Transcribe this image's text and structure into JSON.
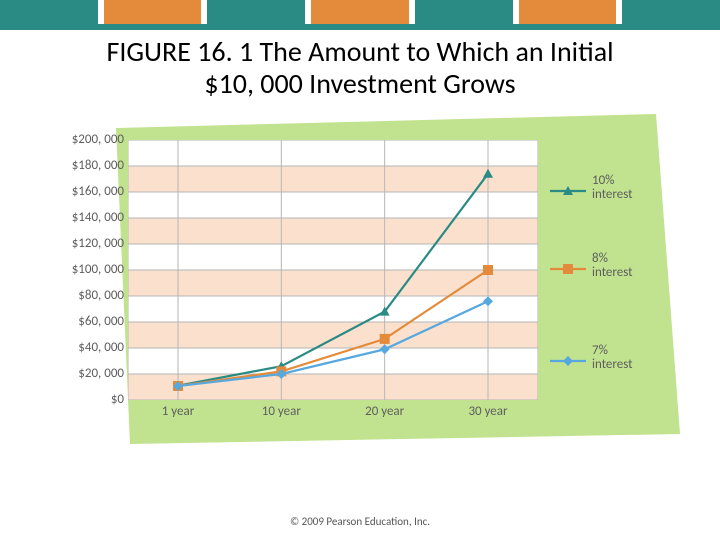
{
  "topStripes": {
    "gap_color": "#ffffff",
    "bottom_bar_color": "#2a8a84",
    "colors": [
      "#2a8a84",
      "#e38b3a",
      "#2a8a84",
      "#e38b3a",
      "#2a8a84",
      "#e38b3a",
      "#2a8a84"
    ]
  },
  "title": {
    "text_line1": "FIGURE 16. 1 The Amount to Which an Initial",
    "text_line2": "$10, 000 Investment Grows",
    "fontsize": 28,
    "color": "#000000"
  },
  "chart": {
    "type": "line",
    "background_color": "#c1e28f",
    "plot_background_even": "#fbe1cd",
    "plot_background_odd": "#ffffff",
    "grid_color": "#b6b6b6",
    "axis_label_color": "#5e5e5e",
    "axis_fontsize": 13,
    "y": {
      "min": 0,
      "max": 200000,
      "step": 20000,
      "ticks": [
        200000,
        180000,
        160000,
        140000,
        120000,
        100000,
        80000,
        60000,
        40000,
        20000,
        0
      ],
      "tick_labels": [
        "$200, 000",
        "$180, 000",
        "$160, 000",
        "$140, 000",
        "$120, 000",
        "$100, 000",
        "$80, 000",
        "$60, 000",
        "$40, 000",
        "$20, 000",
        "$0"
      ]
    },
    "x": {
      "categories": [
        "1 year",
        "10 year",
        "20 year",
        "30 year"
      ]
    },
    "series": [
      {
        "name": "10% interest",
        "color": "#2a8a84",
        "marker": "triangle",
        "values": [
          11000,
          26000,
          68000,
          174000
        ]
      },
      {
        "name": "8% interest",
        "color": "#e38b3a",
        "marker": "square",
        "values": [
          10800,
          22000,
          47000,
          100000
        ]
      },
      {
        "name": "7% interest",
        "color": "#58a8e0",
        "marker": "diamond",
        "values": [
          10700,
          20000,
          39000,
          76000
        ]
      }
    ],
    "marker_size": 10,
    "line_width": 2.2
  },
  "legend": {
    "fontsize": 13,
    "line_length": 36,
    "items": [
      {
        "label_l1": "10%",
        "label_l2": "interest"
      },
      {
        "label_l1": "8%",
        "label_l2": "interest"
      },
      {
        "label_l1": "7%",
        "label_l2": "interest"
      }
    ]
  },
  "footer": {
    "text": "© 2009 Pearson Education, Inc.",
    "fontsize": 11
  }
}
